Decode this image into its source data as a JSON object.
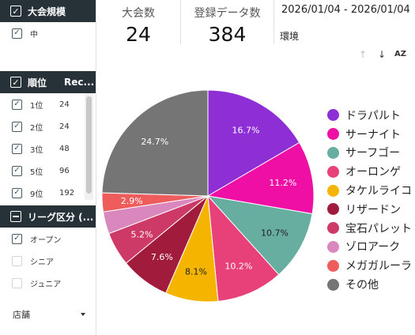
{
  "filters": {
    "tournament_size": {
      "title": "大会規模",
      "items": [
        {
          "label": "中",
          "checked": true
        }
      ]
    },
    "rank_table": {
      "col_rank": "順位",
      "col_rec": "Rec...",
      "rows": [
        {
          "label": "1位",
          "value": "24",
          "checked": true
        },
        {
          "label": "2位",
          "value": "24",
          "checked": true
        },
        {
          "label": "3位",
          "value": "48",
          "checked": true
        },
        {
          "label": "5位",
          "value": "96",
          "checked": true
        },
        {
          "label": "9位",
          "value": "192",
          "checked": true
        }
      ]
    },
    "league": {
      "title": "リーグ区分 (...",
      "items": [
        {
          "label": "オープン",
          "checked": true
        },
        {
          "label": "シニア",
          "checked": false
        },
        {
          "label": "ジュニア",
          "checked": false
        }
      ]
    },
    "store": {
      "label": "店舗"
    }
  },
  "scorecards": [
    {
      "label": "大会数",
      "value": "24"
    },
    {
      "label": "登録データ数",
      "value": "384"
    }
  ],
  "date_range": "2026/01/04 - 2026/01/04",
  "environment_label": "環境",
  "chart_toolbar": {
    "up": "↑",
    "down": "↓",
    "sort": "AZ"
  },
  "chart_data": {
    "type": "pie",
    "slices": [
      {
        "name": "ドラパルト",
        "percent": 16.7,
        "color": "#8e2fd6"
      },
      {
        "name": "サーナイト",
        "percent": 11.2,
        "color": "#ef0fa4"
      },
      {
        "name": "サーフゴー",
        "percent": 10.7,
        "color": "#67ada0"
      },
      {
        "name": "オーロンゲ",
        "percent": 10.2,
        "color": "#e84078"
      },
      {
        "name": "タケルライコ",
        "percent": 8.1,
        "color": "#f4b400"
      },
      {
        "name": "リザードン",
        "percent": 7.6,
        "color": "#a11c3c"
      },
      {
        "name": "宝石パレット",
        "percent": 5.2,
        "color": "#cd3a68"
      },
      {
        "name": "ゾロアーク",
        "percent": 3.4,
        "color": "#d987bd"
      },
      {
        "name": "メガガルーラ",
        "percent": 2.9,
        "color": "#ef5c5c"
      },
      {
        "name": "その他",
        "percent": 24.7,
        "color": "#757575"
      }
    ],
    "labels_shown": [
      "16.7%",
      "11.2%",
      "10.7%",
      "10.2%",
      "8.1%",
      "7.6%",
      "5.2%",
      "",
      "2.9%",
      "24.7%"
    ],
    "legend_position": "right"
  }
}
